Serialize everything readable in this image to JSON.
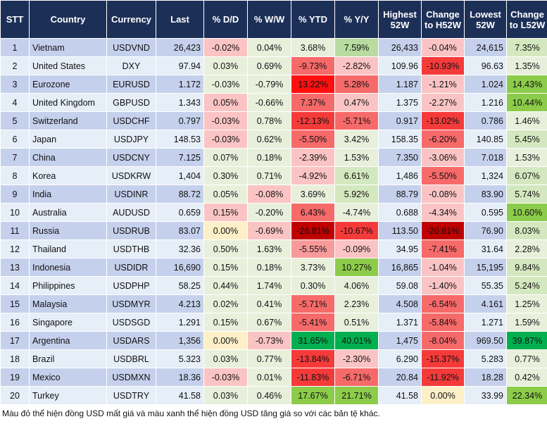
{
  "headers": [
    "STT",
    "Country",
    "Currency",
    "Last",
    "% D/D",
    "% W/W",
    "% YTD",
    "% Y/Y",
    "Highest 52W",
    "Change to H52W",
    "Lowest 52W",
    "Change to L52W"
  ],
  "palette": {
    "header_bg": "#1c2f57",
    "row_odd": "#c5d1ec",
    "row_even": "#e6eef8",
    "neutral": "#e8f0dc",
    "zero": "#fdf0c8",
    "red1": "#fbc4c4",
    "red2": "#f99a9a",
    "red3": "#f76a6a",
    "red4": "#f53a3a",
    "red5": "#ff1010",
    "red6": "#c00000",
    "green1": "#d4e8c0",
    "green2": "#b8dba0",
    "green3": "#8ccc4a",
    "green4": "#00b050"
  },
  "rows": [
    {
      "stt": "1",
      "country": "Vietnam",
      "currency": "USDVND",
      "last": "26,423",
      "dd": "-0.02%",
      "ww": "0.04%",
      "ytd": "3.68%",
      "yy": "7.59%",
      "h52": "26,433",
      "ch52": "-0.04%",
      "l52": "24,615",
      "cl52": "7.35%",
      "col": {
        "dd": "red1",
        "ww": "neutral",
        "ytd": "neutral",
        "yy": "green2",
        "ch52": "red1",
        "cl52": "green1"
      }
    },
    {
      "stt": "2",
      "country": "United States",
      "currency": "DXY",
      "last": "97.94",
      "dd": "0.03%",
      "ww": "0.69%",
      "ytd": "-9.73%",
      "yy": "-2.82%",
      "h52": "109.96",
      "ch52": "-10.93%",
      "l52": "96.63",
      "cl52": "1.35%",
      "col": {
        "dd": "neutral",
        "ww": "neutral",
        "ytd": "red3",
        "yy": "red1",
        "ch52": "red4",
        "cl52": "neutral"
      }
    },
    {
      "stt": "3",
      "country": "Eurozone",
      "currency": "EURUSD",
      "last": "1.172",
      "dd": "-0.03%",
      "ww": "-0.79%",
      "ytd": "13.22%",
      "yy": "5.28%",
      "h52": "1.187",
      "ch52": "-1.21%",
      "l52": "1.024",
      "cl52": "14.43%",
      "col": {
        "dd": "neutral",
        "ww": "neutral",
        "ytd": "red5",
        "yy": "red3",
        "ch52": "red1",
        "cl52": "green3"
      }
    },
    {
      "stt": "4",
      "country": "United Kingdom",
      "currency": "GBPUSD",
      "last": "1.343",
      "dd": "0.05%",
      "ww": "-0.66%",
      "ytd": "7.37%",
      "yy": "0.47%",
      "h52": "1.375",
      "ch52": "-2.27%",
      "l52": "1.216",
      "cl52": "10.44%",
      "col": {
        "dd": "red1",
        "ww": "neutral",
        "ytd": "red3",
        "yy": "red1",
        "ch52": "red1",
        "cl52": "green3"
      }
    },
    {
      "stt": "5",
      "country": "Switzerland",
      "currency": "USDCHF",
      "last": "0.797",
      "dd": "-0.03%",
      "ww": "0.78%",
      "ytd": "-12.13%",
      "yy": "-5.71%",
      "h52": "0.917",
      "ch52": "-13.02%",
      "l52": "0.786",
      "cl52": "1.46%",
      "col": {
        "dd": "red1",
        "ww": "neutral",
        "ytd": "red4",
        "yy": "red3",
        "ch52": "red4",
        "cl52": "neutral"
      }
    },
    {
      "stt": "6",
      "country": "Japan",
      "currency": "USDJPY",
      "last": "148.53",
      "dd": "-0.03%",
      "ww": "0.62%",
      "ytd": "-5.50%",
      "yy": "3.42%",
      "h52": "158.35",
      "ch52": "-6.20%",
      "l52": "140.85",
      "cl52": "5.45%",
      "col": {
        "dd": "red1",
        "ww": "neutral",
        "ytd": "red3",
        "yy": "neutral",
        "ch52": "red3",
        "cl52": "green1"
      }
    },
    {
      "stt": "7",
      "country": "China",
      "currency": "USDCNY",
      "last": "7.125",
      "dd": "0.07%",
      "ww": "0.18%",
      "ytd": "-2.39%",
      "yy": "1.53%",
      "h52": "7.350",
      "ch52": "-3.06%",
      "l52": "7.018",
      "cl52": "1.53%",
      "col": {
        "dd": "neutral",
        "ww": "neutral",
        "ytd": "red1",
        "yy": "neutral",
        "ch52": "red1",
        "cl52": "neutral"
      }
    },
    {
      "stt": "8",
      "country": "Korea",
      "currency": "USDKRW",
      "last": "1,404",
      "dd": "0.30%",
      "ww": "0.71%",
      "ytd": "-4.92%",
      "yy": "6.61%",
      "h52": "1,486",
      "ch52": "-5.50%",
      "l52": "1,324",
      "cl52": "6.07%",
      "col": {
        "dd": "neutral",
        "ww": "neutral",
        "ytd": "red1",
        "yy": "green1",
        "ch52": "red3",
        "cl52": "green1"
      }
    },
    {
      "stt": "9",
      "country": "India",
      "currency": "USDINR",
      "last": "88.72",
      "dd": "0.05%",
      "ww": "-0.08%",
      "ytd": "3.69%",
      "yy": "5.92%",
      "h52": "88.79",
      "ch52": "-0.08%",
      "l52": "83.90",
      "cl52": "5.74%",
      "col": {
        "dd": "neutral",
        "ww": "red1",
        "ytd": "neutral",
        "yy": "green1",
        "ch52": "red1",
        "cl52": "green1"
      }
    },
    {
      "stt": "10",
      "country": "Australia",
      "currency": "AUDUSD",
      "last": "0.659",
      "dd": "0.15%",
      "ww": "-0.20%",
      "ytd": "6.43%",
      "yy": "-4.74%",
      "h52": "0.688",
      "ch52": "-4.34%",
      "l52": "0.595",
      "cl52": "10.60%",
      "col": {
        "dd": "red1",
        "ww": "neutral",
        "ytd": "red3",
        "yy": "neutral",
        "ch52": "red1",
        "cl52": "green3"
      }
    },
    {
      "stt": "11",
      "country": "Russia",
      "currency": "USDRUB",
      "last": "83.07",
      "dd": "0.00%",
      "ww": "-0.69%",
      "ytd": "-26.81%",
      "yy": "-10.67%",
      "h52": "113.50",
      "ch52": "-26.81%",
      "l52": "76.90",
      "cl52": "8.03%",
      "col": {
        "dd": "zero",
        "ww": "red1",
        "ytd": "red6",
        "yy": "red4",
        "ch52": "red6",
        "cl52": "green1"
      }
    },
    {
      "stt": "12",
      "country": "Thailand",
      "currency": "USDTHB",
      "last": "32.36",
      "dd": "0.50%",
      "ww": "1.63%",
      "ytd": "-5.55%",
      "yy": "-0.09%",
      "h52": "34.95",
      "ch52": "-7.41%",
      "l52": "31.64",
      "cl52": "2.28%",
      "col": {
        "dd": "neutral",
        "ww": "neutral",
        "ytd": "red2",
        "yy": "red1",
        "ch52": "red3",
        "cl52": "neutral"
      }
    },
    {
      "stt": "13",
      "country": "Indonesia",
      "currency": "USDIDR",
      "last": "16,690",
      "dd": "0.15%",
      "ww": "0.18%",
      "ytd": "3.73%",
      "yy": "10.27%",
      "h52": "16,865",
      "ch52": "-1.04%",
      "l52": "15,195",
      "cl52": "9.84%",
      "col": {
        "dd": "neutral",
        "ww": "neutral",
        "ytd": "neutral",
        "yy": "green3",
        "ch52": "red1",
        "cl52": "green1"
      }
    },
    {
      "stt": "14",
      "country": "Philippines",
      "currency": "USDPHP",
      "last": "58.25",
      "dd": "0.44%",
      "ww": "1.74%",
      "ytd": "0.30%",
      "yy": "4.06%",
      "h52": "59.08",
      "ch52": "-1.40%",
      "l52": "55.35",
      "cl52": "5.24%",
      "col": {
        "dd": "neutral",
        "ww": "neutral",
        "ytd": "neutral",
        "yy": "neutral",
        "ch52": "red1",
        "cl52": "green1"
      }
    },
    {
      "stt": "15",
      "country": "Malaysia",
      "currency": "USDMYR",
      "last": "4.213",
      "dd": "0.02%",
      "ww": "0.41%",
      "ytd": "-5.71%",
      "yy": "2.23%",
      "h52": "4.508",
      "ch52": "-6.54%",
      "l52": "4.161",
      "cl52": "1.25%",
      "col": {
        "dd": "neutral",
        "ww": "neutral",
        "ytd": "red3",
        "yy": "neutral",
        "ch52": "red3",
        "cl52": "neutral"
      }
    },
    {
      "stt": "16",
      "country": "Singapore",
      "currency": "USDSGD",
      "last": "1.291",
      "dd": "0.15%",
      "ww": "0.67%",
      "ytd": "-5.41%",
      "yy": "0.51%",
      "h52": "1.371",
      "ch52": "-5.84%",
      "l52": "1.271",
      "cl52": "1.59%",
      "col": {
        "dd": "neutral",
        "ww": "neutral",
        "ytd": "red3",
        "yy": "neutral",
        "ch52": "red3",
        "cl52": "neutral"
      }
    },
    {
      "stt": "17",
      "country": "Argentina",
      "currency": "USDARS",
      "last": "1,356",
      "dd": "0.00%",
      "ww": "-0.73%",
      "ytd": "31.65%",
      "yy": "40.01%",
      "h52": "1,475",
      "ch52": "-8.04%",
      "l52": "969.50",
      "cl52": "39.87%",
      "col": {
        "dd": "zero",
        "ww": "red1",
        "ytd": "green4",
        "yy": "green4",
        "ch52": "red3",
        "cl52": "green4"
      }
    },
    {
      "stt": "18",
      "country": "Brazil",
      "currency": "USDBRL",
      "last": "5.323",
      "dd": "0.03%",
      "ww": "0.77%",
      "ytd": "-13.84%",
      "yy": "-2.30%",
      "h52": "6.290",
      "ch52": "-15.37%",
      "l52": "5.283",
      "cl52": "0.77%",
      "col": {
        "dd": "neutral",
        "ww": "neutral",
        "ytd": "red4",
        "yy": "red1",
        "ch52": "red4",
        "cl52": "neutral"
      }
    },
    {
      "stt": "19",
      "country": "Mexico",
      "currency": "USDMXN",
      "last": "18.36",
      "dd": "-0.03%",
      "ww": "0.01%",
      "ytd": "-11.83%",
      "yy": "-6.71%",
      "h52": "20.84",
      "ch52": "-11.92%",
      "l52": "18.28",
      "cl52": "0.42%",
      "col": {
        "dd": "red1",
        "ww": "neutral",
        "ytd": "red4",
        "yy": "red3",
        "ch52": "red4",
        "cl52": "neutral"
      }
    },
    {
      "stt": "20",
      "country": "Turkey",
      "currency": "USDTRY",
      "last": "41.58",
      "dd": "0.03%",
      "ww": "0.46%",
      "ytd": "17.67%",
      "yy": "21.71%",
      "h52": "41.58",
      "ch52": "0.00%",
      "l52": "33.99",
      "cl52": "22.34%",
      "col": {
        "dd": "neutral",
        "ww": "neutral",
        "ytd": "green3",
        "yy": "green3",
        "ch52": "zero",
        "cl52": "green3"
      }
    }
  ],
  "footnote": "Màu đỏ thể hiện đồng USD mất giá và màu xanh thể hiện đồng USD tăng giá so với các bản tệ khác."
}
